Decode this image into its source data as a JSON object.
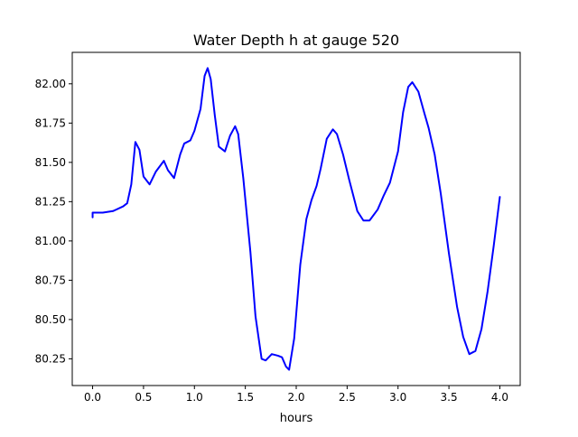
{
  "chart_data": {
    "type": "line",
    "title": "Water Depth h at gauge 520",
    "xlabel": "hours",
    "ylabel": "",
    "xlim": [
      -0.2,
      4.2
    ],
    "ylim": [
      80.08,
      82.2
    ],
    "xticks": [
      0.0,
      0.5,
      1.0,
      1.5,
      2.0,
      2.5,
      3.0,
      3.5,
      4.0
    ],
    "xtick_labels": [
      "0.0",
      "0.5",
      "1.0",
      "1.5",
      "2.0",
      "2.5",
      "3.0",
      "3.5",
      "4.0"
    ],
    "yticks": [
      80.25,
      80.5,
      80.75,
      81.0,
      81.25,
      81.5,
      81.75,
      82.0
    ],
    "ytick_labels": [
      "80.25",
      "80.50",
      "80.75",
      "81.00",
      "81.25",
      "81.50",
      "81.75",
      "82.00"
    ],
    "grid": false,
    "series": [
      {
        "color": "#0000ff",
        "x": [
          0.0,
          0.0,
          0.1,
          0.2,
          0.3,
          0.34,
          0.38,
          0.42,
          0.46,
          0.5,
          0.56,
          0.62,
          0.7,
          0.74,
          0.8,
          0.86,
          0.9,
          0.96,
          1.0,
          1.06,
          1.1,
          1.13,
          1.16,
          1.2,
          1.24,
          1.3,
          1.35,
          1.4,
          1.43,
          1.48,
          1.55,
          1.6,
          1.66,
          1.7,
          1.76,
          1.82,
          1.86,
          1.9,
          1.93,
          1.98,
          2.04,
          2.1,
          2.15,
          2.2,
          2.24,
          2.3,
          2.36,
          2.4,
          2.46,
          2.52,
          2.6,
          2.66,
          2.72,
          2.8,
          2.86,
          2.92,
          3.0,
          3.05,
          3.1,
          3.14,
          3.2,
          3.26,
          3.3,
          3.36,
          3.42,
          3.5,
          3.58,
          3.64,
          3.7,
          3.76,
          3.82,
          3.88,
          3.94,
          4.0
        ],
        "y": [
          81.15,
          81.18,
          81.18,
          81.19,
          81.22,
          81.24,
          81.36,
          81.63,
          81.58,
          81.41,
          81.36,
          81.44,
          81.51,
          81.45,
          81.4,
          81.55,
          81.62,
          81.64,
          81.7,
          81.84,
          82.05,
          82.1,
          82.03,
          81.8,
          81.6,
          81.57,
          81.67,
          81.73,
          81.68,
          81.4,
          80.93,
          80.52,
          80.25,
          80.24,
          80.28,
          80.27,
          80.26,
          80.2,
          80.18,
          80.38,
          80.85,
          81.14,
          81.26,
          81.35,
          81.46,
          81.65,
          81.71,
          81.68,
          81.55,
          81.39,
          81.19,
          81.13,
          81.13,
          81.2,
          81.29,
          81.37,
          81.57,
          81.82,
          81.98,
          82.01,
          81.95,
          81.81,
          81.72,
          81.55,
          81.3,
          80.92,
          80.58,
          80.39,
          80.28,
          80.3,
          80.44,
          80.68,
          80.97,
          81.28
        ]
      }
    ]
  }
}
